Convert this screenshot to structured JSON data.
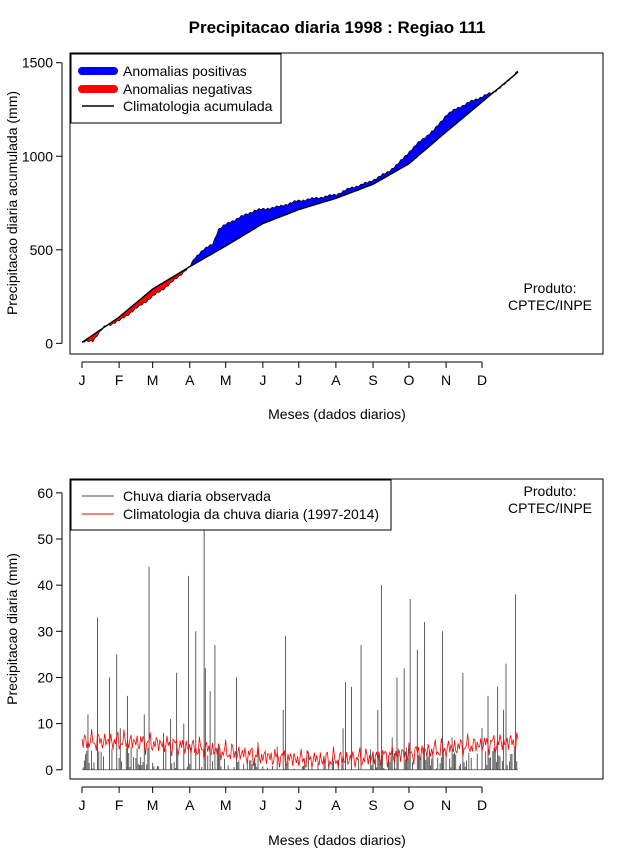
{
  "title": "Precipitacao diaria 1998 : Regiao 111",
  "product_note": [
    "Produto:",
    "CPTEC/INPE"
  ],
  "colors": {
    "positive": "#0000ff",
    "negative": "#ff0000",
    "climatology": "#000000",
    "observed": "#4d4d4d",
    "daily_climatology": "#ff0000"
  },
  "chart_data": [
    {
      "type": "area",
      "xlabel": "Meses (dados diarios)",
      "ylabel": "Precipitacao diaria acumulada (mm)",
      "ylim": [
        0,
        1500
      ],
      "yticks": [
        0,
        500,
        1000,
        1500
      ],
      "xlim": [
        -9,
        436
      ],
      "month_ticks": [
        "J",
        "F",
        "M",
        "A",
        "M",
        "J",
        "J",
        "A",
        "S",
        "O",
        "N",
        "D"
      ],
      "month_start_days": [
        1,
        32,
        60,
        91,
        121,
        152,
        182,
        213,
        244,
        274,
        305,
        335
      ],
      "legend": [
        "Anomalias positivas",
        "Anomalias negativas",
        "Climatologia acumulada"
      ],
      "legend_position": "top-left",
      "climatology_anchors": [
        [
          1,
          5
        ],
        [
          32,
          140
        ],
        [
          60,
          290
        ],
        [
          91,
          410
        ],
        [
          121,
          520
        ],
        [
          152,
          640
        ],
        [
          182,
          715
        ],
        [
          213,
          775
        ],
        [
          244,
          850
        ],
        [
          274,
          960
        ],
        [
          305,
          1130
        ],
        [
          335,
          1290
        ],
        [
          365,
          1450
        ]
      ],
      "observed_anchors": [
        [
          1,
          5
        ],
        [
          10,
          15
        ],
        [
          20,
          90
        ],
        [
          32,
          120
        ],
        [
          45,
          180
        ],
        [
          60,
          250
        ],
        [
          75,
          320
        ],
        [
          91,
          410
        ],
        [
          95,
          455
        ],
        [
          100,
          490
        ],
        [
          110,
          530
        ],
        [
          115,
          610
        ],
        [
          125,
          650
        ],
        [
          135,
          680
        ],
        [
          145,
          710
        ],
        [
          165,
          730
        ],
        [
          180,
          760
        ],
        [
          200,
          780
        ],
        [
          213,
          795
        ],
        [
          225,
          830
        ],
        [
          240,
          860
        ],
        [
          255,
          910
        ],
        [
          265,
          960
        ],
        [
          275,
          1030
        ],
        [
          285,
          1090
        ],
        [
          295,
          1140
        ],
        [
          305,
          1220
        ],
        [
          315,
          1260
        ],
        [
          330,
          1305
        ],
        [
          345,
          1345
        ],
        [
          355,
          1390
        ],
        [
          365,
          1460
        ]
      ]
    },
    {
      "type": "line",
      "xlabel": "Meses (dados diarios)",
      "ylabel": "Precipitacao diaria (mm)",
      "ylim": [
        -2,
        63
      ],
      "yticks": [
        0,
        10,
        20,
        30,
        40,
        50,
        60
      ],
      "xlim": [
        -9,
        436
      ],
      "month_ticks": [
        "J",
        "F",
        "M",
        "A",
        "M",
        "J",
        "J",
        "A",
        "S",
        "O",
        "N",
        "D"
      ],
      "month_start_days": [
        1,
        32,
        60,
        91,
        121,
        152,
        182,
        213,
        244,
        274,
        305,
        335
      ],
      "legend": [
        "Chuva diaria observada",
        "Climatologia da chuva diaria (1997-2014)"
      ],
      "legend_position": "top-left",
      "peaks": [
        [
          3,
          2
        ],
        [
          6,
          12
        ],
        [
          14,
          33
        ],
        [
          24,
          20
        ],
        [
          30,
          25
        ],
        [
          33,
          9
        ],
        [
          39,
          16
        ],
        [
          53,
          12
        ],
        [
          57,
          44
        ],
        [
          69,
          8
        ],
        [
          75,
          11
        ],
        [
          80,
          21
        ],
        [
          86,
          10
        ],
        [
          90,
          42
        ],
        [
          96,
          30
        ],
        [
          103,
          53
        ],
        [
          104,
          22
        ],
        [
          108,
          17
        ],
        [
          112,
          27
        ],
        [
          130,
          20
        ],
        [
          148,
          6
        ],
        [
          164,
          5
        ],
        [
          169,
          13
        ],
        [
          171,
          29
        ],
        [
          190,
          4
        ],
        [
          203,
          3
        ],
        [
          219,
          9
        ],
        [
          221,
          19
        ],
        [
          226,
          18
        ],
        [
          234,
          27
        ],
        [
          248,
          13
        ],
        [
          251,
          40
        ],
        [
          260,
          7
        ],
        [
          264,
          20
        ],
        [
          270,
          22
        ],
        [
          275,
          37
        ],
        [
          281,
          26
        ],
        [
          287,
          32
        ],
        [
          302,
          30
        ],
        [
          310,
          7
        ],
        [
          319,
          21
        ],
        [
          335,
          9
        ],
        [
          340,
          16
        ],
        [
          348,
          18
        ],
        [
          353,
          13
        ],
        [
          355,
          23
        ],
        [
          363,
          38
        ]
      ]
    }
  ]
}
